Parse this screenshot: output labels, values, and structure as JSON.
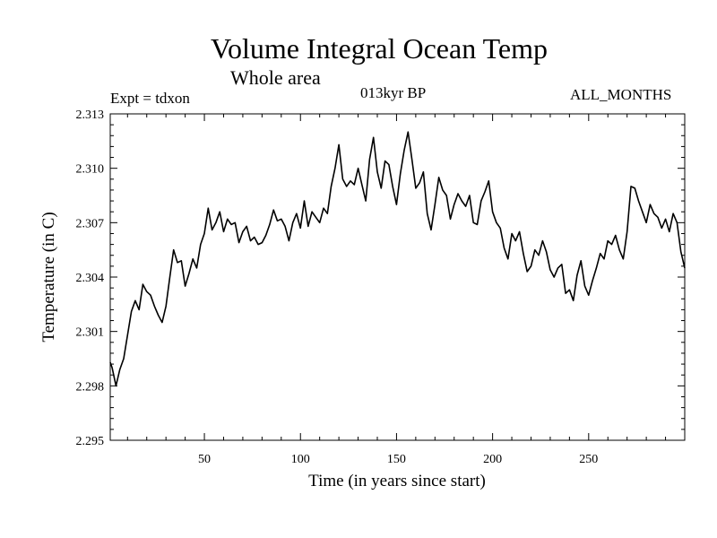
{
  "chart_data": {
    "type": "line",
    "title": "Volume Integral Ocean Temp",
    "subtitle": "Whole area",
    "annotations": {
      "left": "Expt = tdxon",
      "center": "013kyr BP",
      "right": "ALL_MONTHS"
    },
    "xlabel": "Time (in years since start)",
    "ylabel": "Temperature (in C)",
    "xlim": [
      1,
      300
    ],
    "ylim": [
      2.295,
      2.313
    ],
    "x_ticks": [
      50,
      100,
      150,
      200,
      250
    ],
    "y_ticks": [
      "2.295",
      "2.298",
      "2.301",
      "2.304",
      "2.307",
      "2.310",
      "2.313"
    ],
    "grid": false,
    "line_color": "#000000",
    "series": [
      {
        "x": [
          1,
          2,
          4,
          6,
          8,
          10,
          12,
          14,
          16,
          18,
          20,
          22,
          24,
          26,
          28,
          30,
          32,
          34,
          36,
          38,
          40,
          42,
          44,
          46,
          48,
          50,
          52,
          54,
          56,
          58,
          60,
          62,
          64,
          66,
          68,
          70,
          72,
          74,
          76,
          78,
          80,
          82,
          84,
          86,
          88,
          90,
          92,
          94,
          96,
          98,
          100,
          102,
          104,
          106,
          108,
          110,
          112,
          114,
          116,
          118,
          120,
          122,
          124,
          126,
          128,
          130,
          132,
          134,
          136,
          138,
          140,
          142,
          144,
          146,
          148,
          150,
          152,
          154,
          156,
          158,
          160,
          162,
          164,
          166,
          168,
          170,
          172,
          174,
          176,
          178,
          180,
          182,
          184,
          186,
          188,
          190,
          192,
          194,
          196,
          198,
          200,
          202,
          204,
          206,
          208,
          210,
          212,
          214,
          216,
          218,
          220,
          222,
          224,
          226,
          228,
          230,
          232,
          234,
          236,
          238,
          240,
          242,
          244,
          246,
          248,
          250,
          252,
          254,
          256,
          258,
          260,
          262,
          264,
          266,
          268,
          270,
          272,
          274,
          276,
          278,
          280,
          282,
          284,
          286,
          288,
          290,
          292,
          294,
          296,
          298,
          300
        ],
        "values": [
          2.2993,
          2.299,
          2.298,
          2.2989,
          2.2995,
          2.3008,
          2.3021,
          2.3027,
          2.3022,
          2.3036,
          2.3032,
          2.303,
          2.3024,
          2.3019,
          2.3015,
          2.3024,
          2.304,
          2.3055,
          2.3048,
          2.3049,
          2.3035,
          2.3042,
          2.305,
          2.3045,
          2.3058,
          2.3064,
          2.3078,
          2.3066,
          2.307,
          2.3076,
          2.3065,
          2.3072,
          2.3069,
          2.307,
          2.3059,
          2.3065,
          2.3068,
          2.306,
          2.3062,
          2.3058,
          2.3059,
          2.3063,
          2.3069,
          2.3077,
          2.3071,
          2.3072,
          2.3068,
          2.306,
          2.307,
          2.3075,
          2.3067,
          2.3082,
          2.3068,
          2.3076,
          2.3073,
          2.307,
          2.3078,
          2.3075,
          2.309,
          2.31,
          2.3113,
          2.3094,
          2.309,
          2.3093,
          2.3091,
          2.31,
          2.3091,
          2.3082,
          2.3105,
          2.3117,
          2.3098,
          2.3089,
          2.3104,
          2.3102,
          2.309,
          2.308,
          2.3097,
          2.311,
          2.312,
          2.3105,
          2.3089,
          2.3092,
          2.3098,
          2.3075,
          2.3066,
          2.308,
          2.3095,
          2.3088,
          2.3085,
          2.3072,
          2.308,
          2.3086,
          2.3082,
          2.3079,
          2.3085,
          2.307,
          2.3069,
          2.3082,
          2.3087,
          2.3093,
          2.3076,
          2.307,
          2.3067,
          2.3056,
          2.305,
          2.3064,
          2.306,
          2.3065,
          2.3053,
          2.3043,
          2.3046,
          2.3055,
          2.3052,
          2.306,
          2.3054,
          2.3044,
          2.304,
          2.3045,
          2.3047,
          2.3031,
          2.3033,
          2.3027,
          2.3041,
          2.3049,
          2.3035,
          2.303,
          2.3038,
          2.3045,
          2.3053,
          2.305,
          2.306,
          2.3058,
          2.3063,
          2.3055,
          2.305,
          2.3065,
          2.309,
          2.3089,
          2.3082,
          2.3076,
          2.307,
          2.308,
          2.3075,
          2.3073,
          2.3067,
          2.3072,
          2.3065,
          2.3075,
          2.307,
          2.3054,
          2.3045
        ]
      }
    ]
  }
}
